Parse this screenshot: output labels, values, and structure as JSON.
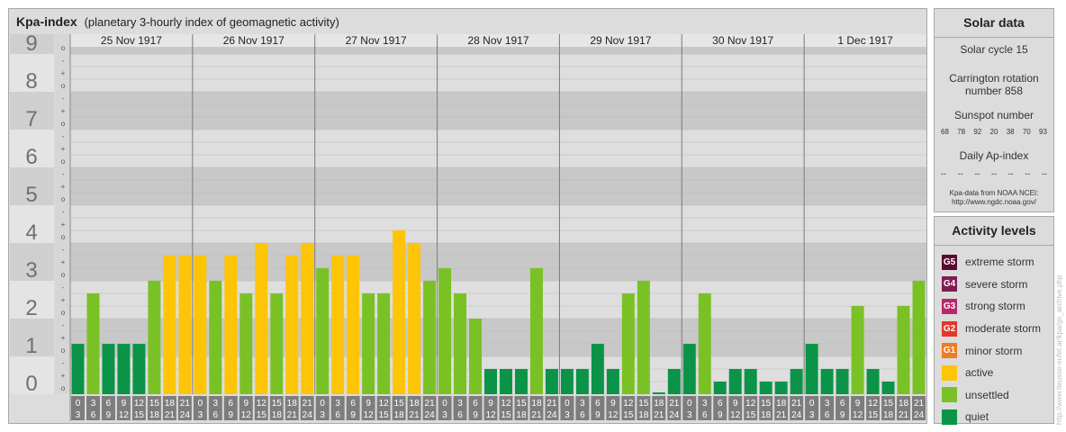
{
  "header": {
    "title": "Kpa-index",
    "subtitle": "(planetary 3-hourly index of geomagnetic activity)"
  },
  "chart_data": {
    "type": "bar",
    "title": "Kpa-index",
    "subtitle": "(planetary 3-hourly index of geomagnetic activity)",
    "y_tick_labels": [
      "0",
      "1",
      "2",
      "3",
      "4",
      "5",
      "6",
      "7",
      "8",
      "9"
    ],
    "y_minor_labels": [
      "+",
      "o",
      "-"
    ],
    "ylim": [
      0,
      9.333
    ],
    "days": [
      "25 Nov 1917",
      "26 Nov 1917",
      "27 Nov 1917",
      "28 Nov 1917",
      "29 Nov 1917",
      "30 Nov 1917",
      "1 Dec 1917"
    ],
    "interval_start": [
      "0",
      "3",
      "6",
      "9",
      "12",
      "15",
      "18",
      "21"
    ],
    "interval_end": [
      "3",
      "6",
      "9",
      "12",
      "15",
      "18",
      "21",
      "24"
    ],
    "kp_values": [
      1.333,
      2.667,
      1.333,
      1.333,
      1.333,
      3.0,
      3.667,
      3.667,
      3.667,
      3.0,
      3.667,
      2.667,
      4.0,
      2.667,
      3.667,
      4.0,
      3.333,
      3.667,
      3.667,
      2.667,
      2.667,
      4.333,
      4.0,
      3.0,
      3.333,
      2.667,
      2.0,
      0.667,
      0.667,
      0.667,
      3.333,
      0.667,
      0.667,
      0.667,
      1.333,
      0.667,
      2.667,
      3.0,
      0.0,
      0.667,
      1.333,
      2.667,
      0.333,
      0.667,
      0.667,
      0.333,
      0.333,
      0.667,
      1.333,
      0.667,
      0.667,
      2.333,
      0.667,
      0.333,
      2.333,
      3.0
    ],
    "colors": {
      "quiet": "#0b9448",
      "unsettled": "#7ac125",
      "active": "#fec408"
    }
  },
  "solar": {
    "title": "Solar data",
    "cycle": "Solar cycle 15",
    "carrington": "Carrington rotation number 858",
    "sunspot_title": "Sunspot number",
    "sunspots": [
      "68",
      "78",
      "92",
      "20",
      "38",
      "70",
      "93"
    ],
    "ap_title": "Daily Ap-index",
    "ap": [
      "--",
      "--",
      "--",
      "--",
      "--",
      "--",
      "--"
    ],
    "source": "Kpa-data from NOAA NCEI: http://www.ngdc.noaa.gov/"
  },
  "activity": {
    "title": "Activity levels",
    "levels": [
      {
        "code": "G5",
        "label": "extreme storm",
        "color": "#5a0a33"
      },
      {
        "code": "G4",
        "label": "severe storm",
        "color": "#821a55"
      },
      {
        "code": "G3",
        "label": "strong storm",
        "color": "#b52a6c"
      },
      {
        "code": "G2",
        "label": "moderate storm",
        "color": "#e2382b"
      },
      {
        "code": "G1",
        "label": "minor storm",
        "color": "#ef7c1e"
      },
      {
        "code": "",
        "label": "active",
        "color": "#fec408"
      },
      {
        "code": "",
        "label": "unsettled",
        "color": "#7ac125"
      },
      {
        "code": "",
        "label": "quiet",
        "color": "#0b9448"
      }
    ]
  },
  "credit": "http://www.tieusse-eufet.ar/kpa/go_archive.php"
}
